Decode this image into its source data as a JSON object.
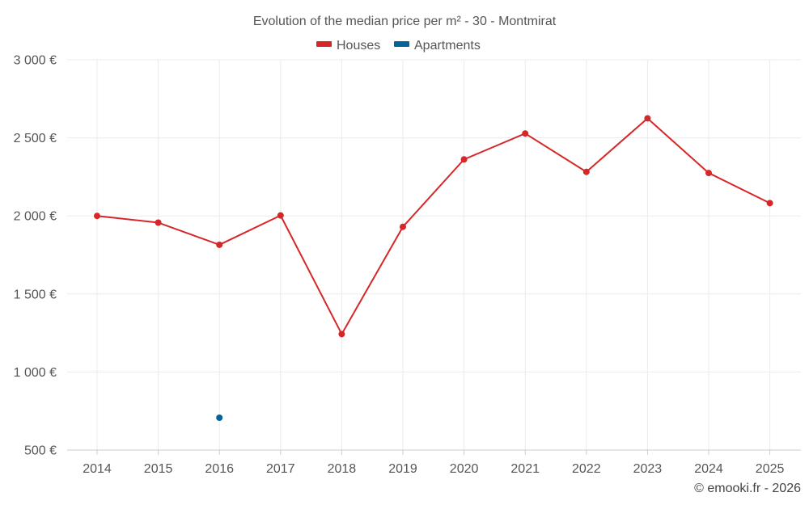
{
  "chart_data": {
    "type": "line",
    "title": "Evolution of the median price per m² - 30 - Montmirat",
    "categories": [
      "2014",
      "2015",
      "2016",
      "2017",
      "2018",
      "2019",
      "2020",
      "2021",
      "2022",
      "2023",
      "2024",
      "2025"
    ],
    "series": [
      {
        "name": "Houses",
        "color": "#d62728",
        "values": [
          2000,
          1957,
          1815,
          2003,
          1243,
          1930,
          2362,
          2528,
          2282,
          2625,
          2275,
          2082
        ]
      },
      {
        "name": "Apartments",
        "color": "#06639a",
        "values": [
          null,
          null,
          707,
          null,
          null,
          null,
          null,
          null,
          null,
          null,
          null,
          null
        ]
      }
    ],
    "y_ticks": [
      "500 €",
      "1 000 €",
      "1 500 €",
      "2 000 €",
      "2 500 €",
      "3 000 €"
    ],
    "y_tick_values": [
      500,
      1000,
      1500,
      2000,
      2500,
      3000
    ],
    "ylim": [
      500,
      3000
    ],
    "xlabel": "",
    "ylabel": "",
    "legend_position": "top-center",
    "grid": true
  },
  "copyright": "© emooki.fr - 2026"
}
